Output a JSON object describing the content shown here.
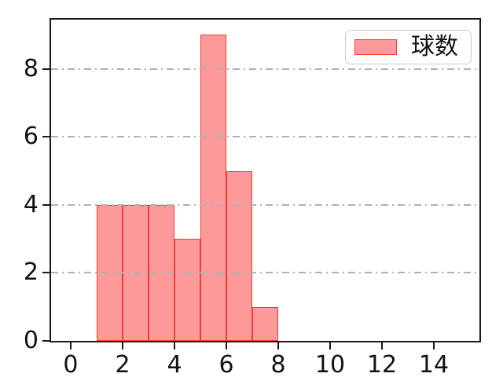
{
  "chart_data": {
    "type": "bar",
    "subtype": "histogram",
    "title": "",
    "xlabel": "",
    "ylabel": "",
    "series": [
      {
        "name": "球数",
        "bin_start": 1,
        "bin_width": 1,
        "bin_edges": [
          1,
          2,
          3,
          4,
          5,
          6,
          7,
          8
        ],
        "counts": [
          4,
          4,
          4,
          3,
          9,
          5,
          1
        ]
      }
    ],
    "xlim": [
      -0.757,
      15.757
    ],
    "ylim": [
      0,
      9.45
    ],
    "xticks": [
      0,
      2,
      4,
      6,
      8,
      10,
      12,
      14
    ],
    "yticks": [
      0,
      2,
      4,
      6,
      8
    ],
    "grid": {
      "axis": "y",
      "style": "dashdot",
      "over_bars": true
    },
    "legend": {
      "label": "球数",
      "position": "upper right"
    },
    "colors": {
      "bar_fill": "#fc9a9a",
      "bar_edge": "#f53a3a",
      "grid": "#b0b0b0",
      "spine": "#1a1a1a",
      "tick_label": "#111111",
      "legend_border": "#cccccc",
      "legend_bg": "#ffffff"
    }
  }
}
